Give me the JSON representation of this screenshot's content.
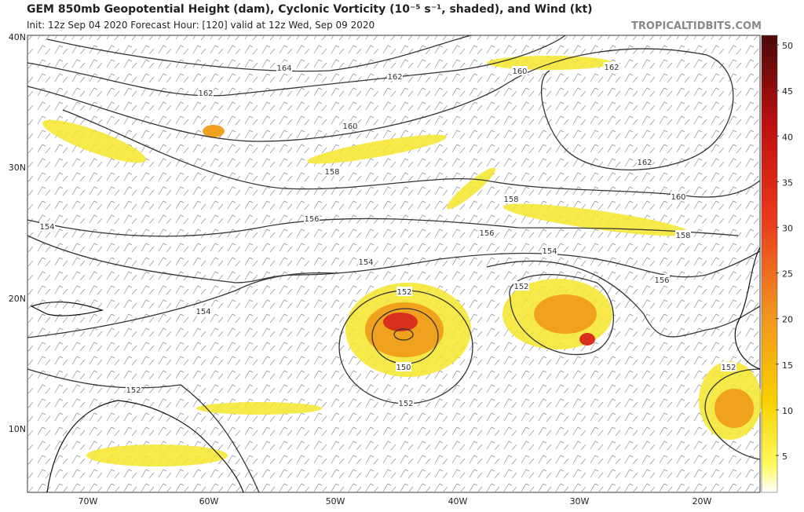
{
  "header": {
    "title": "GEM 850mb Geopotential Height (dam), Cyclonic Vorticity (10⁻⁵ s⁻¹, shaded), and Wind (kt)",
    "subtitle": "Init: 12z Sep 04 2020   Forecast Hour: [120]   valid at 12z Wed, Sep 09 2020",
    "source": "TROPICALTIDBITS.COM"
  },
  "map": {
    "lat_labels": [
      "40N",
      "30N",
      "20N",
      "10N"
    ],
    "lon_labels": [
      "70W",
      "60W",
      "50W",
      "40W",
      "30W",
      "20W"
    ],
    "contour_labels": [
      "164",
      "162",
      "160",
      "162",
      "162",
      "160",
      "162",
      "158",
      "158",
      "160",
      "156",
      "156",
      "158",
      "154",
      "154",
      "154",
      "156",
      "152",
      "152",
      "154",
      "150",
      "152",
      "152",
      "152"
    ]
  },
  "colorbar": {
    "ticks": [
      5,
      10,
      15,
      20,
      25,
      30,
      35,
      40,
      45,
      50
    ]
  }
}
